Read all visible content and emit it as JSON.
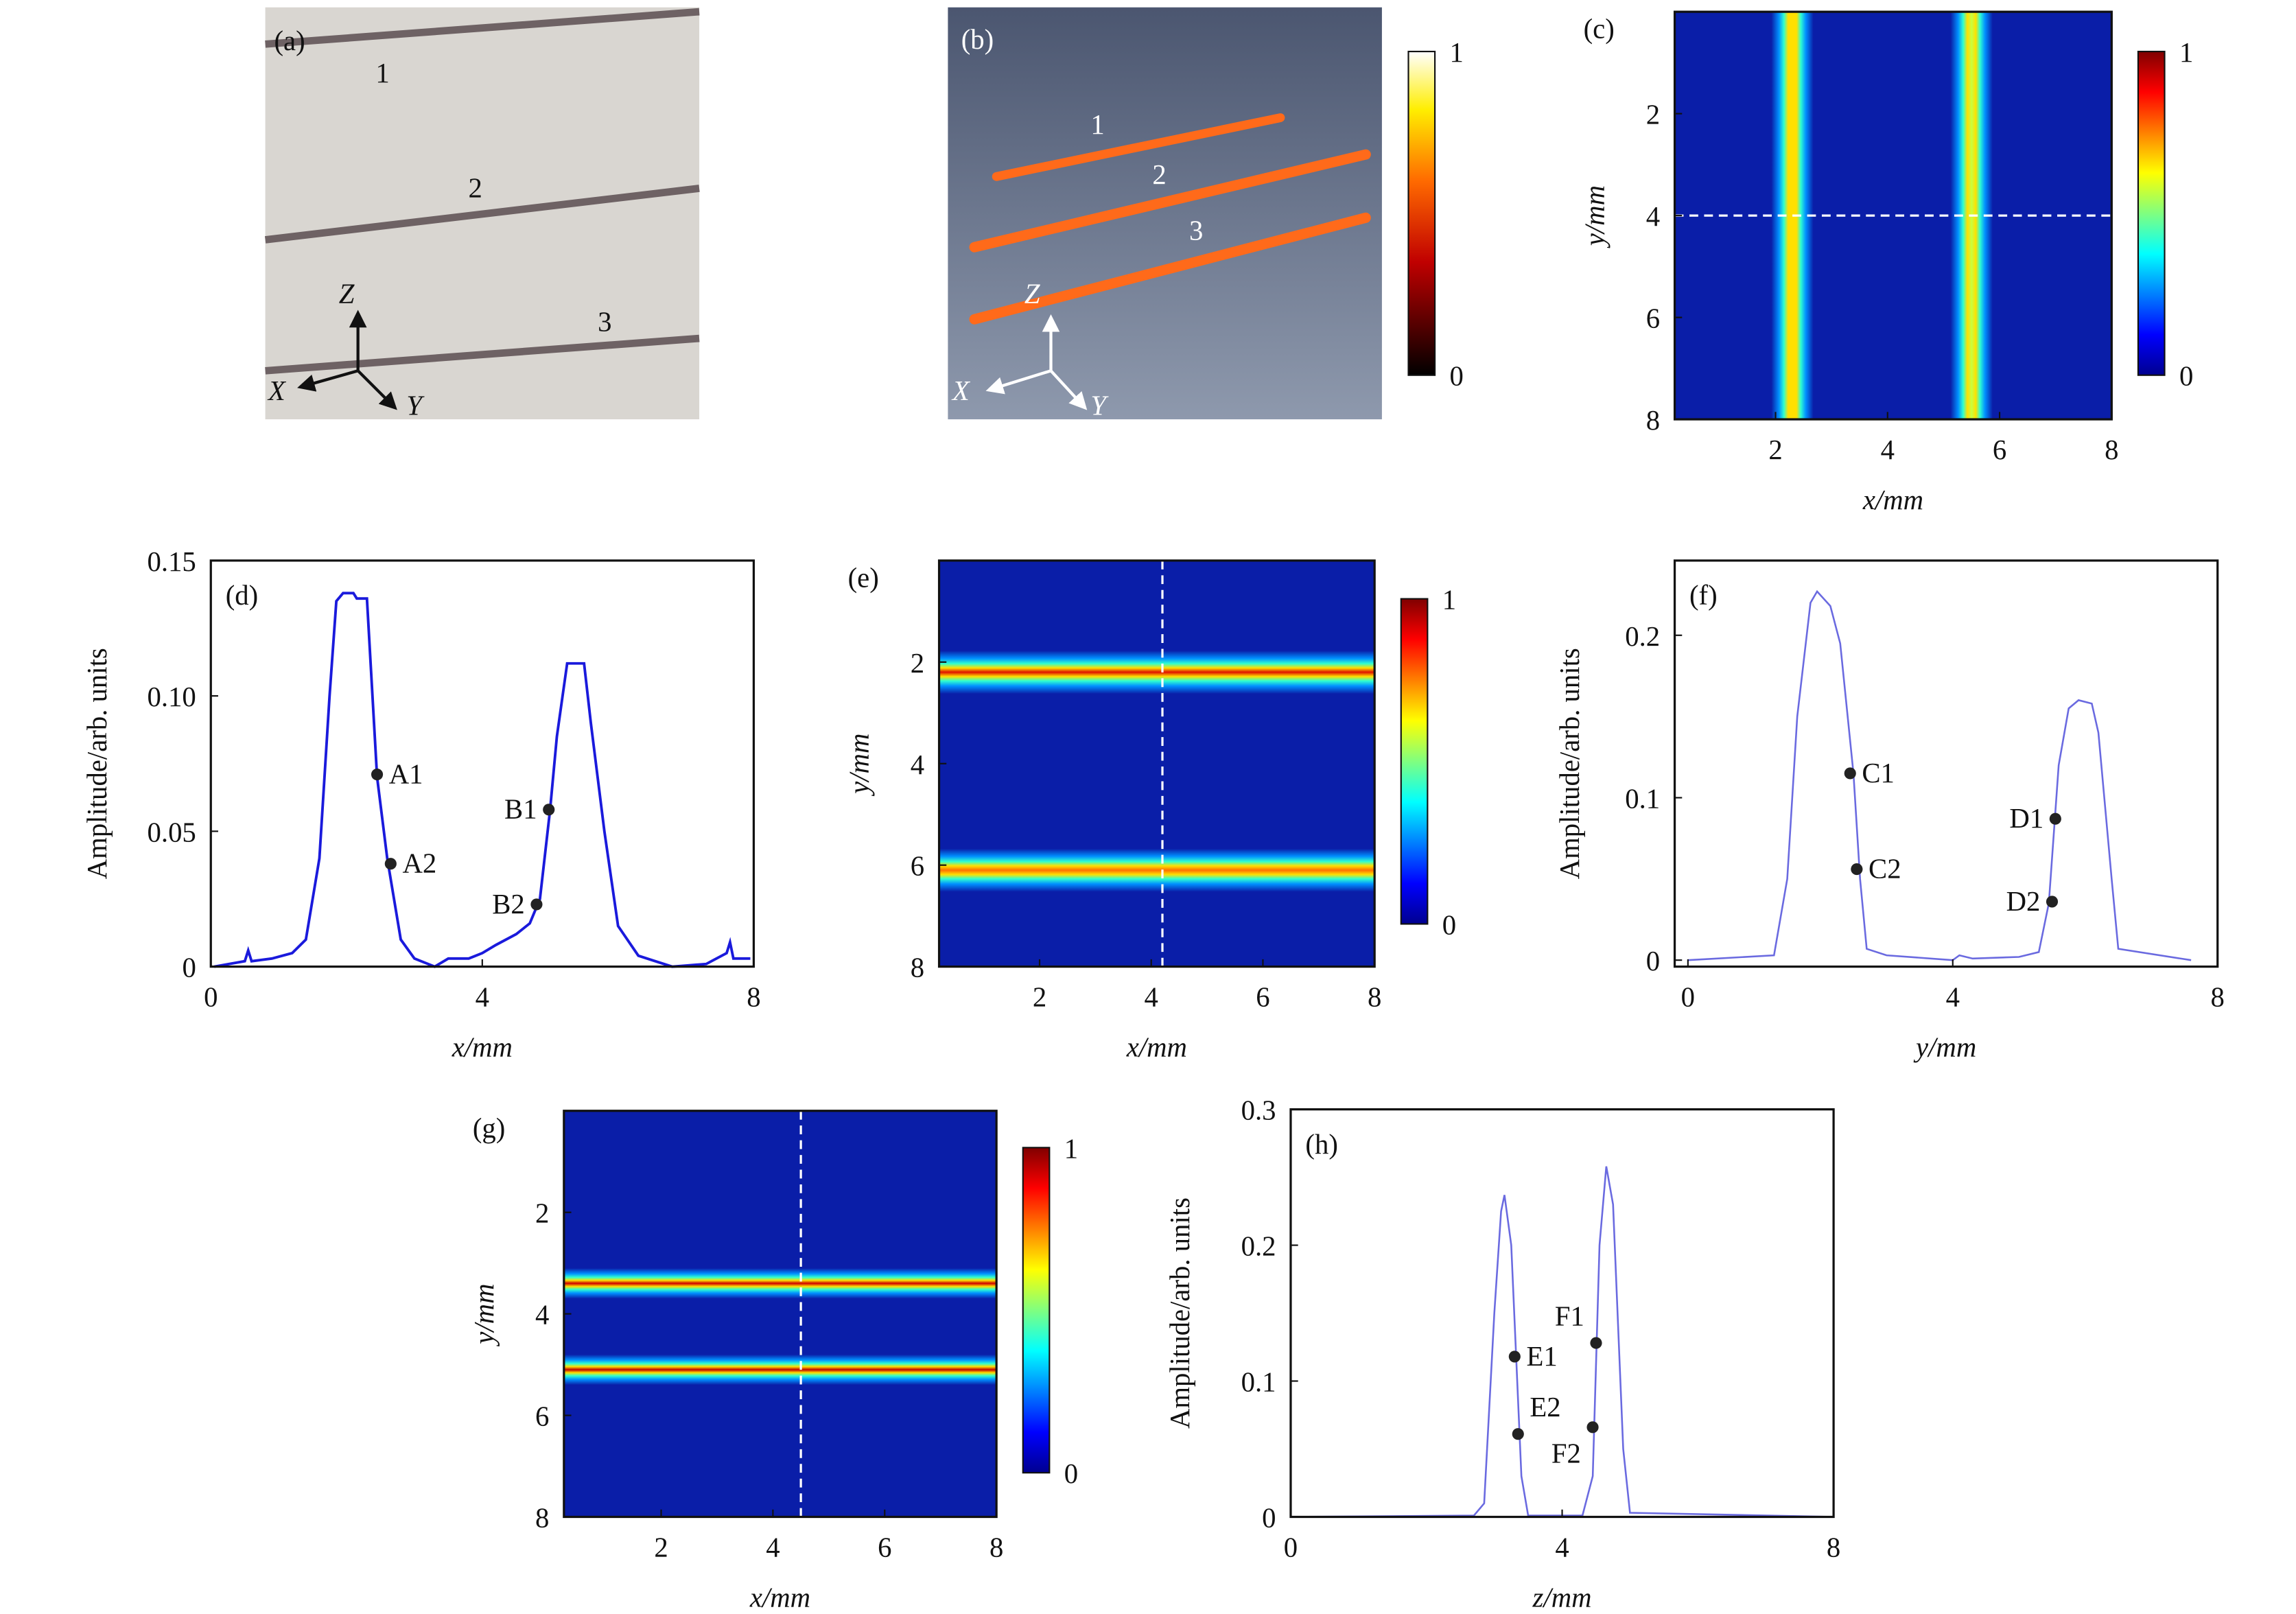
{
  "panel_a": {
    "label": "(a)",
    "numbers": [
      "1",
      "2",
      "3"
    ],
    "axes": {
      "z": "Z",
      "x": "X",
      "y": "Y"
    }
  },
  "panel_b": {
    "label": "(b)",
    "numbers": [
      "1",
      "2",
      "3"
    ],
    "axes": {
      "z": "Z",
      "x": "X",
      "y": "Y"
    },
    "colorbar_ticks": [
      "1",
      "0"
    ]
  },
  "colors": {
    "line_d": "#1a1adc",
    "line_f": "#6a6ae0",
    "line_h": "#6a6ae0",
    "marker": "#222222",
    "bg_photo": "#d9d6d1"
  },
  "chart_data": [
    {
      "id": "c",
      "type": "heatmap",
      "label": "(c)",
      "xlabel": "x/mm",
      "ylabel": "y/mm",
      "xlim": [
        0.2,
        8
      ],
      "ylim": [
        0,
        8
      ],
      "xticks": [
        "2",
        "4",
        "6",
        "8"
      ],
      "xtick_values": [
        2,
        4,
        6,
        8
      ],
      "yticks": [
        "2",
        "4",
        "6",
        "8"
      ],
      "ytick_values": [
        2,
        4,
        6,
        8
      ],
      "orientation": "vertical",
      "bands": [
        {
          "center": 2.3,
          "width": 0.75,
          "peak": "#ffe000"
        },
        {
          "center": 5.5,
          "width": 0.75,
          "peak": "#c8ff40"
        }
      ],
      "dashed_line": {
        "axis": "y",
        "value": 4
      },
      "colorbar_ticks": [
        "1",
        "0"
      ]
    },
    {
      "id": "d",
      "type": "line",
      "label": "(d)",
      "xlabel": "x/mm",
      "ylabel": "Amplitude/arb. units",
      "xlim": [
        0,
        8
      ],
      "ylim": [
        0,
        0.15
      ],
      "xticks": [
        "0",
        "4",
        "8"
      ],
      "xtick_values": [
        0,
        4,
        8
      ],
      "yticks": [
        "0",
        "0.05",
        "0.10",
        "0.15"
      ],
      "ytick_values": [
        0,
        0.05,
        0.1,
        0.15
      ],
      "x": [
        0.05,
        0.5,
        0.55,
        0.6,
        0.9,
        1.2,
        1.4,
        1.6,
        1.75,
        1.85,
        1.95,
        2.1,
        2.15,
        2.3,
        2.45,
        2.6,
        2.8,
        3.0,
        3.3,
        3.5,
        3.8,
        4.0,
        4.2,
        4.5,
        4.7,
        4.85,
        5.0,
        5.1,
        5.25,
        5.5,
        5.6,
        5.8,
        6.0,
        6.3,
        6.8,
        7.3,
        7.6,
        7.65,
        7.7,
        7.95
      ],
      "y": [
        0.0,
        0.002,
        0.006,
        0.002,
        0.003,
        0.005,
        0.01,
        0.04,
        0.1,
        0.135,
        0.138,
        0.138,
        0.136,
        0.136,
        0.07,
        0.04,
        0.01,
        0.003,
        0.0,
        0.003,
        0.003,
        0.005,
        0.008,
        0.012,
        0.016,
        0.025,
        0.058,
        0.085,
        0.112,
        0.112,
        0.09,
        0.05,
        0.015,
        0.004,
        0.0,
        0.001,
        0.005,
        0.009,
        0.003,
        0.003
      ],
      "markers": [
        {
          "name": "A1",
          "x": 2.45,
          "y": 0.071,
          "side": "right"
        },
        {
          "name": "A2",
          "x": 2.65,
          "y": 0.038,
          "side": "right"
        },
        {
          "name": "B1",
          "x": 4.98,
          "y": 0.058,
          "side": "left"
        },
        {
          "name": "B2",
          "x": 4.8,
          "y": 0.023,
          "side": "left"
        }
      ]
    },
    {
      "id": "e",
      "type": "heatmap",
      "label": "(e)",
      "xlabel": "x/mm",
      "ylabel": "y/mm",
      "xlim": [
        0.2,
        8
      ],
      "ylim": [
        0,
        8
      ],
      "xticks": [
        "2",
        "4",
        "6",
        "8"
      ],
      "xtick_values": [
        2,
        4,
        6,
        8
      ],
      "yticks": [
        "2",
        "4",
        "6",
        "8"
      ],
      "ytick_values": [
        2,
        4,
        6,
        8
      ],
      "orientation": "horizontal",
      "bands": [
        {
          "center": 2.2,
          "width": 0.85,
          "peak": "#e01000"
        },
        {
          "center": 6.1,
          "width": 0.85,
          "peak": "#ff7000"
        }
      ],
      "dashed_line": {
        "axis": "x",
        "value": 4.2
      },
      "colorbar_ticks": [
        "1",
        "0"
      ]
    },
    {
      "id": "f",
      "type": "line",
      "label": "(f)",
      "xlabel": "y/mm",
      "ylabel": "Amplitude/arb. units",
      "xlim": [
        -0.2,
        8
      ],
      "ylim": [
        -0.004,
        0.246
      ],
      "xticks": [
        "0",
        "4",
        "8"
      ],
      "xtick_values": [
        0,
        4,
        8
      ],
      "yticks": [
        "0",
        "0.1",
        "0.2"
      ],
      "ytick_values": [
        0,
        0.1,
        0.2
      ],
      "x": [
        0,
        1.3,
        1.5,
        1.65,
        1.85,
        1.95,
        2.15,
        2.3,
        2.5,
        2.6,
        2.7,
        3.0,
        4.0,
        4.1,
        4.3,
        5.0,
        5.3,
        5.45,
        5.6,
        5.75,
        5.9,
        6.1,
        6.2,
        6.4,
        6.5,
        7.6
      ],
      "y": [
        0,
        0.003,
        0.05,
        0.15,
        0.22,
        0.227,
        0.218,
        0.195,
        0.115,
        0.05,
        0.007,
        0.003,
        0.0,
        0.003,
        0.001,
        0.002,
        0.005,
        0.035,
        0.12,
        0.155,
        0.16,
        0.158,
        0.14,
        0.05,
        0.007,
        0.0
      ],
      "markers": [
        {
          "name": "C1",
          "x": 2.45,
          "y": 0.115,
          "side": "right"
        },
        {
          "name": "C2",
          "x": 2.55,
          "y": 0.056,
          "side": "right"
        },
        {
          "name": "D1",
          "x": 5.55,
          "y": 0.087,
          "side": "left"
        },
        {
          "name": "D2",
          "x": 5.5,
          "y": 0.036,
          "side": "left"
        }
      ]
    },
    {
      "id": "g",
      "type": "heatmap",
      "label": "(g)",
      "xlabel": "x/mm",
      "ylabel": "y/mm",
      "xlim": [
        0.26,
        8
      ],
      "ylim": [
        0,
        8
      ],
      "xticks": [
        "2",
        "4",
        "6",
        "8"
      ],
      "xtick_values": [
        2,
        4,
        6,
        8
      ],
      "yticks": [
        "2",
        "4",
        "6",
        "8"
      ],
      "ytick_values": [
        2,
        4,
        6,
        8
      ],
      "orientation": "horizontal",
      "bands": [
        {
          "center": 3.4,
          "width": 0.6,
          "peak": "#d00000"
        },
        {
          "center": 5.1,
          "width": 0.6,
          "peak": "#c00000"
        }
      ],
      "dashed_line": {
        "axis": "x",
        "value": 4.5
      },
      "colorbar_ticks": [
        "1",
        "0"
      ]
    },
    {
      "id": "h",
      "type": "line",
      "label": "(h)",
      "xlabel": "z/mm",
      "ylabel": "Amplitude/arb. units",
      "xlim": [
        0,
        8
      ],
      "ylim": [
        0,
        0.3
      ],
      "xticks": [
        "0",
        "4",
        "8"
      ],
      "xtick_values": [
        0,
        4,
        8
      ],
      "yticks": [
        "0",
        "0.1",
        "0.2",
        "0.3"
      ],
      "ytick_values": [
        0,
        0.1,
        0.2,
        0.3
      ],
      "x": [
        0,
        2.7,
        2.85,
        3.0,
        3.1,
        3.15,
        3.25,
        3.4,
        3.5,
        4.3,
        4.45,
        4.55,
        4.65,
        4.75,
        4.9,
        5.0,
        8
      ],
      "y": [
        0,
        0.001,
        0.01,
        0.15,
        0.225,
        0.237,
        0.2,
        0.03,
        0.001,
        0.001,
        0.03,
        0.2,
        0.258,
        0.23,
        0.05,
        0.003,
        0
      ],
      "markers": [
        {
          "name": "E1",
          "x": 3.3,
          "y": 0.118,
          "side": "right"
        },
        {
          "name": "E2",
          "x": 3.35,
          "y": 0.061,
          "side": "right-up"
        },
        {
          "name": "F1",
          "x": 4.5,
          "y": 0.128,
          "side": "left-up"
        },
        {
          "name": "F2",
          "x": 4.45,
          "y": 0.066,
          "side": "left-down"
        }
      ]
    }
  ]
}
